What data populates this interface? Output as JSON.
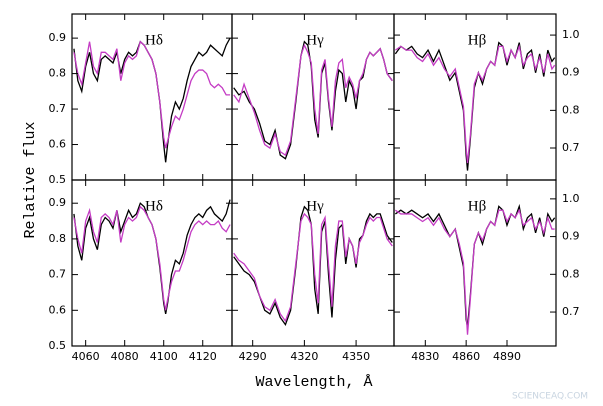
{
  "ylabel": "Relative flux",
  "xlabel": "Wavelength, Å",
  "watermark": "SCIENCEAQ.COM",
  "chart_data": [
    {
      "type": "line",
      "title": "Hδ",
      "xlim": [
        4053,
        4135
      ],
      "ylim": [
        0.5,
        0.968
      ],
      "xticks": [
        4060,
        4080,
        4100,
        4120
      ],
      "yticks": [
        0.5,
        0.6,
        0.7,
        0.8,
        0.9
      ],
      "show_xtick_labels": false,
      "show_ytick_labels": true,
      "ytick_side": "left",
      "x": [
        4054,
        4056,
        4058,
        4060,
        4062,
        4064,
        4066,
        4068,
        4070,
        4072,
        4074,
        4076,
        4078,
        4080,
        4082,
        4084,
        4086,
        4088,
        4090,
        4092,
        4094,
        4096,
        4098,
        4100,
        4101,
        4102,
        4104,
        4106,
        4108,
        4110,
        4112,
        4114,
        4116,
        4118,
        4120,
        4122,
        4124,
        4126,
        4128,
        4130,
        4132,
        4134
      ],
      "series": [
        {
          "color": "#000000",
          "values": [
            0.87,
            0.78,
            0.75,
            0.82,
            0.86,
            0.8,
            0.78,
            0.84,
            0.85,
            0.84,
            0.83,
            0.86,
            0.8,
            0.84,
            0.86,
            0.85,
            0.86,
            0.89,
            0.88,
            0.86,
            0.84,
            0.8,
            0.72,
            0.6,
            0.55,
            0.6,
            0.68,
            0.72,
            0.7,
            0.73,
            0.78,
            0.82,
            0.84,
            0.86,
            0.85,
            0.86,
            0.88,
            0.87,
            0.86,
            0.85,
            0.88,
            0.9
          ]
        },
        {
          "color": "#c43cc4",
          "values": [
            0.86,
            0.8,
            0.77,
            0.83,
            0.89,
            0.82,
            0.8,
            0.86,
            0.86,
            0.85,
            0.84,
            0.87,
            0.78,
            0.83,
            0.85,
            0.84,
            0.85,
            0.89,
            0.88,
            0.86,
            0.84,
            0.8,
            0.72,
            0.62,
            0.59,
            0.61,
            0.65,
            0.68,
            0.67,
            0.7,
            0.74,
            0.78,
            0.8,
            0.81,
            0.81,
            0.8,
            0.77,
            0.76,
            0.77,
            0.76,
            0.74,
            0.74
          ]
        }
      ]
    },
    {
      "type": "line",
      "title": "Hγ",
      "xlim": [
        4278,
        4372
      ],
      "ylim": [
        0.5,
        0.968
      ],
      "xticks": [
        4290,
        4320,
        4350
      ],
      "yticks": [
        0.5,
        0.6,
        0.7,
        0.8,
        0.9
      ],
      "show_xtick_labels": false,
      "show_ytick_labels": false,
      "ytick_side": "left",
      "x": [
        4279,
        4282,
        4285,
        4288,
        4291,
        4294,
        4297,
        4300,
        4303,
        4306,
        4309,
        4312,
        4315,
        4318,
        4320,
        4322,
        4324,
        4326,
        4328,
        4330,
        4332,
        4334,
        4336,
        4338,
        4340,
        4342,
        4344,
        4346,
        4348,
        4350,
        4352,
        4354,
        4356,
        4358,
        4360,
        4362,
        4364,
        4366,
        4368,
        4371
      ],
      "series": [
        {
          "color": "#000000",
          "values": [
            0.76,
            0.74,
            0.75,
            0.72,
            0.7,
            0.66,
            0.61,
            0.6,
            0.64,
            0.57,
            0.56,
            0.6,
            0.72,
            0.85,
            0.89,
            0.88,
            0.82,
            0.67,
            0.62,
            0.8,
            0.83,
            0.72,
            0.64,
            0.75,
            0.81,
            0.8,
            0.72,
            0.78,
            0.76,
            0.7,
            0.78,
            0.79,
            0.84,
            0.86,
            0.85,
            0.86,
            0.87,
            0.84,
            0.8,
            0.78
          ]
        },
        {
          "color": "#c43cc4",
          "values": [
            0.74,
            0.72,
            0.77,
            0.73,
            0.69,
            0.64,
            0.6,
            0.59,
            0.63,
            0.58,
            0.57,
            0.61,
            0.73,
            0.85,
            0.88,
            0.86,
            0.83,
            0.7,
            0.63,
            0.81,
            0.84,
            0.73,
            0.65,
            0.78,
            0.83,
            0.84,
            0.76,
            0.79,
            0.77,
            0.73,
            0.78,
            0.8,
            0.84,
            0.86,
            0.85,
            0.86,
            0.87,
            0.84,
            0.8,
            0.78
          ]
        }
      ]
    },
    {
      "type": "line",
      "title": "Hβ",
      "xlim": [
        4807,
        4926
      ],
      "ylim": [
        0.615,
        1.056
      ],
      "xticks": [
        4830,
        4860,
        4890
      ],
      "yticks": [
        0.7,
        0.8,
        0.9,
        {
          "value": 1,
          "label": "1.0"
        }
      ],
      "show_xtick_labels": false,
      "show_ytick_labels": true,
      "ytick_side": "right",
      "x": [
        4808,
        4812,
        4816,
        4820,
        4824,
        4828,
        4832,
        4836,
        4840,
        4844,
        4848,
        4852,
        4855,
        4858,
        4860,
        4861,
        4863,
        4866,
        4869,
        4872,
        4875,
        4878,
        4881,
        4884,
        4887,
        4890,
        4893,
        4896,
        4899,
        4902,
        4905,
        4908,
        4911,
        4914,
        4917,
        4920,
        4923,
        4925
      ],
      "series": [
        {
          "color": "#000000",
          "values": [
            0.95,
            0.97,
            0.96,
            0.97,
            0.95,
            0.94,
            0.96,
            0.93,
            0.96,
            0.92,
            0.88,
            0.9,
            0.85,
            0.8,
            0.68,
            0.64,
            0.72,
            0.86,
            0.9,
            0.87,
            0.91,
            0.93,
            0.92,
            0.98,
            0.97,
            0.92,
            0.96,
            0.94,
            0.98,
            0.91,
            0.95,
            0.96,
            0.9,
            0.95,
            0.89,
            0.96,
            0.93,
            0.94
          ]
        },
        {
          "color": "#c43cc4",
          "values": [
            0.96,
            0.97,
            0.96,
            0.96,
            0.94,
            0.93,
            0.95,
            0.92,
            0.94,
            0.91,
            0.89,
            0.91,
            0.86,
            0.81,
            0.7,
            0.66,
            0.73,
            0.87,
            0.9,
            0.88,
            0.91,
            0.93,
            0.92,
            0.97,
            0.97,
            0.93,
            0.96,
            0.94,
            0.97,
            0.92,
            0.94,
            0.95,
            0.91,
            0.94,
            0.9,
            0.95,
            0.91,
            0.92
          ]
        }
      ]
    },
    {
      "type": "line",
      "title": "Hδ",
      "xlim": [
        4053,
        4135
      ],
      "ylim": [
        0.5,
        0.965
      ],
      "xticks": [
        4060,
        4080,
        4100,
        4120
      ],
      "yticks": [
        0.5,
        0.6,
        0.7,
        0.8,
        0.9
      ],
      "show_xtick_labels": true,
      "show_ytick_labels": true,
      "ytick_side": "left",
      "x": [
        4054,
        4056,
        4058,
        4060,
        4062,
        4064,
        4066,
        4068,
        4070,
        4072,
        4074,
        4076,
        4078,
        4080,
        4082,
        4084,
        4086,
        4088,
        4090,
        4092,
        4094,
        4096,
        4098,
        4100,
        4101,
        4102,
        4104,
        4106,
        4108,
        4110,
        4112,
        4114,
        4116,
        4118,
        4120,
        4122,
        4124,
        4126,
        4128,
        4130,
        4132,
        4134
      ],
      "series": [
        {
          "color": "#000000",
          "values": [
            0.87,
            0.78,
            0.74,
            0.83,
            0.86,
            0.8,
            0.77,
            0.84,
            0.86,
            0.85,
            0.83,
            0.88,
            0.82,
            0.85,
            0.88,
            0.86,
            0.87,
            0.9,
            0.89,
            0.86,
            0.84,
            0.8,
            0.72,
            0.62,
            0.59,
            0.62,
            0.7,
            0.74,
            0.73,
            0.76,
            0.81,
            0.84,
            0.86,
            0.87,
            0.86,
            0.88,
            0.89,
            0.87,
            0.86,
            0.85,
            0.87,
            0.91
          ]
        },
        {
          "color": "#c43cc4",
          "values": [
            0.86,
            0.8,
            0.76,
            0.85,
            0.88,
            0.82,
            0.79,
            0.86,
            0.87,
            0.86,
            0.84,
            0.88,
            0.79,
            0.84,
            0.86,
            0.85,
            0.86,
            0.89,
            0.88,
            0.86,
            0.84,
            0.8,
            0.73,
            0.63,
            0.6,
            0.63,
            0.68,
            0.71,
            0.71,
            0.74,
            0.78,
            0.82,
            0.84,
            0.85,
            0.84,
            0.85,
            0.84,
            0.84,
            0.85,
            0.83,
            0.82,
            0.84
          ]
        }
      ]
    },
    {
      "type": "line",
      "title": "Hγ",
      "xlim": [
        4278,
        4372
      ],
      "ylim": [
        0.5,
        0.965
      ],
      "xticks": [
        4290,
        4320,
        4350
      ],
      "yticks": [
        0.5,
        0.6,
        0.7,
        0.8,
        0.9
      ],
      "show_xtick_labels": true,
      "show_ytick_labels": false,
      "ytick_side": "left",
      "x": [
        4279,
        4282,
        4285,
        4288,
        4291,
        4294,
        4297,
        4300,
        4303,
        4306,
        4309,
        4312,
        4315,
        4318,
        4320,
        4322,
        4324,
        4326,
        4328,
        4330,
        4332,
        4334,
        4336,
        4338,
        4340,
        4342,
        4344,
        4346,
        4348,
        4350,
        4352,
        4354,
        4356,
        4358,
        4360,
        4362,
        4364,
        4366,
        4368,
        4371
      ],
      "series": [
        {
          "color": "#000000",
          "values": [
            0.75,
            0.73,
            0.71,
            0.7,
            0.68,
            0.64,
            0.6,
            0.59,
            0.62,
            0.58,
            0.56,
            0.6,
            0.72,
            0.86,
            0.89,
            0.88,
            0.84,
            0.66,
            0.59,
            0.82,
            0.85,
            0.7,
            0.58,
            0.74,
            0.83,
            0.84,
            0.73,
            0.8,
            0.78,
            0.72,
            0.8,
            0.81,
            0.85,
            0.87,
            0.86,
            0.87,
            0.87,
            0.84,
            0.81,
            0.79
          ]
        },
        {
          "color": "#c43cc4",
          "values": [
            0.76,
            0.74,
            0.73,
            0.71,
            0.69,
            0.64,
            0.61,
            0.6,
            0.63,
            0.59,
            0.57,
            0.61,
            0.73,
            0.85,
            0.87,
            0.86,
            0.84,
            0.7,
            0.62,
            0.84,
            0.86,
            0.73,
            0.61,
            0.78,
            0.85,
            0.85,
            0.75,
            0.8,
            0.78,
            0.73,
            0.79,
            0.81,
            0.84,
            0.86,
            0.85,
            0.86,
            0.86,
            0.83,
            0.8,
            0.78
          ]
        }
      ]
    },
    {
      "type": "line",
      "title": "Hβ",
      "xlim": [
        4807,
        4926
      ],
      "ylim": [
        0.61,
        1.05
      ],
      "xticks": [
        4830,
        4860,
        4890
      ],
      "yticks": [
        0.7,
        0.8,
        0.9,
        {
          "value": 1,
          "label": "1.0"
        }
      ],
      "show_xtick_labels": true,
      "show_ytick_labels": true,
      "ytick_side": "right",
      "x": [
        4808,
        4812,
        4816,
        4820,
        4824,
        4828,
        4832,
        4836,
        4840,
        4844,
        4848,
        4852,
        4855,
        4858,
        4860,
        4861,
        4863,
        4866,
        4869,
        4872,
        4875,
        4878,
        4881,
        4884,
        4887,
        4890,
        4893,
        4896,
        4899,
        4902,
        4905,
        4908,
        4911,
        4914,
        4917,
        4920,
        4923,
        4925
      ],
      "series": [
        {
          "color": "#000000",
          "values": [
            0.96,
            0.97,
            0.96,
            0.97,
            0.96,
            0.95,
            0.96,
            0.94,
            0.96,
            0.93,
            0.9,
            0.92,
            0.87,
            0.82,
            0.68,
            0.66,
            0.74,
            0.88,
            0.91,
            0.88,
            0.92,
            0.94,
            0.93,
            0.98,
            0.97,
            0.93,
            0.96,
            0.95,
            0.98,
            0.92,
            0.95,
            0.96,
            0.91,
            0.95,
            0.9,
            0.96,
            0.94,
            0.95
          ]
        },
        {
          "color": "#c43cc4",
          "values": [
            0.97,
            0.96,
            0.96,
            0.96,
            0.95,
            0.94,
            0.95,
            0.93,
            0.95,
            0.92,
            0.9,
            0.92,
            0.88,
            0.83,
            0.7,
            0.64,
            0.73,
            0.88,
            0.91,
            0.89,
            0.92,
            0.94,
            0.93,
            0.97,
            0.97,
            0.94,
            0.96,
            0.95,
            0.97,
            0.93,
            0.94,
            0.95,
            0.92,
            0.94,
            0.91,
            0.95,
            0.92,
            0.92
          ]
        }
      ]
    }
  ]
}
